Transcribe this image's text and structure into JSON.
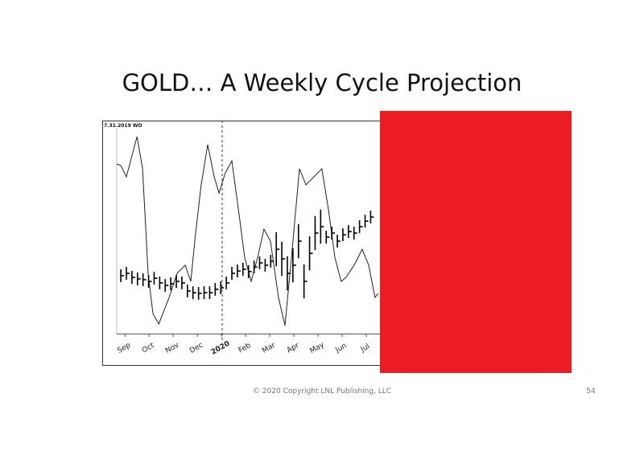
{
  "slide": {
    "title": "GOLD… A Weekly Cycle Projection",
    "footer": "© 2020 Copyright LNL Publishing, LLC",
    "page_number": "54"
  },
  "chart_data": {
    "type": "line",
    "label": "7.31.2019 WO",
    "xlim": [
      -0.17,
      10.67
    ],
    "ylim": [
      0,
      100
    ],
    "vline": 4.2,
    "xticks": [
      {
        "value": 0.17,
        "label": "Sep"
      },
      {
        "value": 1.17,
        "label": "Oct"
      },
      {
        "value": 2.17,
        "label": "Nov"
      },
      {
        "value": 3.17,
        "label": "Dec"
      },
      {
        "value": 4.17,
        "label": "2020"
      },
      {
        "value": 5.17,
        "label": "Feb"
      },
      {
        "value": 6.17,
        "label": "Mar"
      },
      {
        "value": 7.17,
        "label": "Apr"
      },
      {
        "value": 8.17,
        "label": "May"
      },
      {
        "value": 9.17,
        "label": "Jun"
      },
      {
        "value": 10.17,
        "label": "Jul"
      }
    ],
    "series": [
      {
        "type": "line",
        "color": "#222222",
        "x": [
          -0.17,
          0,
          0.23,
          0.67,
          0.9,
          1.13,
          1.33,
          1.57,
          2,
          2.33,
          2.67,
          2.9,
          3.1,
          3.33,
          3.6,
          3.87,
          4.07,
          4.33,
          4.6,
          4.87,
          5.13,
          5.4,
          5.67,
          5.93,
          6.2,
          6.53,
          6.8,
          7.07,
          7.4,
          7.67,
          8,
          8.33,
          8.6,
          8.87,
          9.13,
          9.33,
          9.67,
          10,
          10.27,
          10.53,
          10.67
        ],
        "values": [
          79.6,
          78.9,
          73.6,
          92.5,
          77.4,
          28.3,
          9.4,
          4.5,
          17,
          28.3,
          32.1,
          24.5,
          47.2,
          69.8,
          88.7,
          73.6,
          66,
          75.5,
          81.1,
          58.5,
          35.8,
          24.5,
          35.8,
          49.1,
          43.4,
          17,
          3.8,
          35.8,
          77.4,
          69.8,
          73.6,
          77.4,
          58.5,
          35.8,
          24.5,
          26.4,
          32.1,
          39.6,
          32.1,
          17,
          18.9
        ]
      },
      {
        "type": "hlc",
        "color": "#000000",
        "x": [
          0,
          0.23,
          0.46,
          0.69,
          0.92,
          1.15,
          1.38,
          1.61,
          1.84,
          2.07,
          2.3,
          2.53,
          2.76,
          2.99,
          3.22,
          3.45,
          3.68,
          3.91,
          4.14,
          4.37,
          4.6,
          4.83,
          5.06,
          5.29,
          5.52,
          5.75,
          5.98,
          6.21,
          6.44,
          6.67,
          6.9,
          7.13,
          7.36,
          7.59,
          7.82,
          8.05,
          8.28,
          8.51,
          8.74,
          8.97,
          9.2,
          9.43,
          9.66,
          9.89,
          10.12,
          10.35
        ],
        "high": [
          30.2,
          31.3,
          29.4,
          28.7,
          28.3,
          27.5,
          29,
          26.8,
          25.6,
          26.4,
          27.5,
          26.8,
          23,
          22.2,
          21.9,
          22.2,
          22.2,
          23.8,
          24.5,
          26.8,
          31.3,
          32.4,
          33.2,
          32.1,
          34.3,
          36.2,
          35.1,
          37,
          47.6,
          43.1,
          36.3,
          40.1,
          51.4,
          32.5,
          45.7,
          55.2,
          58.2,
          48.3,
          50.2,
          46.4,
          49.4,
          50.9,
          50.2,
          53.2,
          55.8,
          57.7
        ],
        "low": [
          24.2,
          25.3,
          23.4,
          22.7,
          22.3,
          21.5,
          23,
          20.8,
          19.6,
          20.4,
          21.5,
          20.8,
          17,
          16.2,
          15.9,
          16.2,
          16.2,
          17.8,
          18.5,
          20.8,
          25.3,
          26.4,
          27.2,
          26.1,
          28.3,
          30.2,
          29.1,
          31,
          31.6,
          27.1,
          20.3,
          24.1,
          35.4,
          16.5,
          29.7,
          39.2,
          42.2,
          42.3,
          44.2,
          40.4,
          43.4,
          44.9,
          44.2,
          47.2,
          49.8,
          51.7
        ],
        "close": [
          27.2,
          28.3,
          26.4,
          25.7,
          25.3,
          24.5,
          26,
          23.8,
          22.6,
          23.4,
          24.5,
          23.8,
          20,
          19.2,
          18.9,
          19.2,
          19.2,
          20.8,
          21.5,
          23.8,
          28.3,
          29.4,
          30.2,
          29.1,
          31.3,
          33.2,
          32.1,
          34,
          39.6,
          35.1,
          28.3,
          32.1,
          43.4,
          24.5,
          37.7,
          47.2,
          50.2,
          45.3,
          47.2,
          43.4,
          46.4,
          47.9,
          47.2,
          50.2,
          52.8,
          54.7
        ]
      }
    ]
  }
}
